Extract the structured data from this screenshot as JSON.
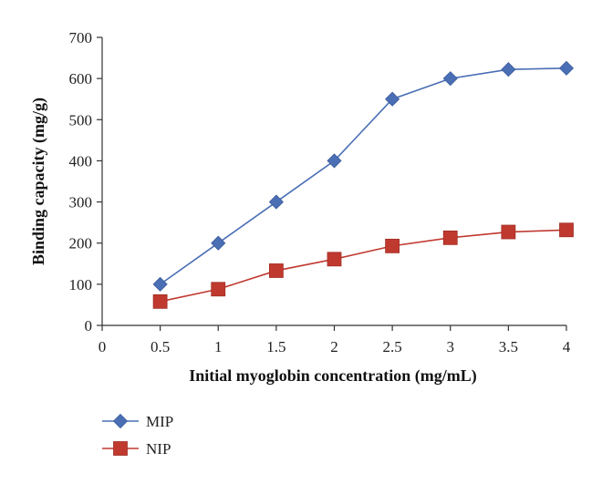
{
  "chart_data": {
    "type": "line",
    "title": "",
    "xlabel": "Initial myoglobin concentration (mg/mL)",
    "ylabel": "Binding capacity (mg/g)",
    "xlim": [
      0,
      4
    ],
    "ylim": [
      0,
      700
    ],
    "xticks": [
      "0",
      "0.5",
      "1",
      "1.5",
      "2",
      "2.5",
      "3",
      "3.5",
      "4"
    ],
    "yticks": [
      "0",
      "100",
      "200",
      "300",
      "400",
      "500",
      "600",
      "700"
    ],
    "grid": false,
    "legend_position": "bottom-left",
    "x": [
      0.5,
      1,
      1.5,
      2,
      2.5,
      3,
      3.5,
      4
    ],
    "series": [
      {
        "name": "MIP",
        "color": "#4a6fb5",
        "marker": "diamond",
        "values": [
          100,
          200,
          300,
          400,
          550,
          600,
          622,
          625
        ]
      },
      {
        "name": "NIP",
        "color": "#c0392f",
        "marker": "square",
        "values": [
          58,
          88,
          133,
          161,
          193,
          213,
          227,
          232
        ]
      }
    ]
  }
}
